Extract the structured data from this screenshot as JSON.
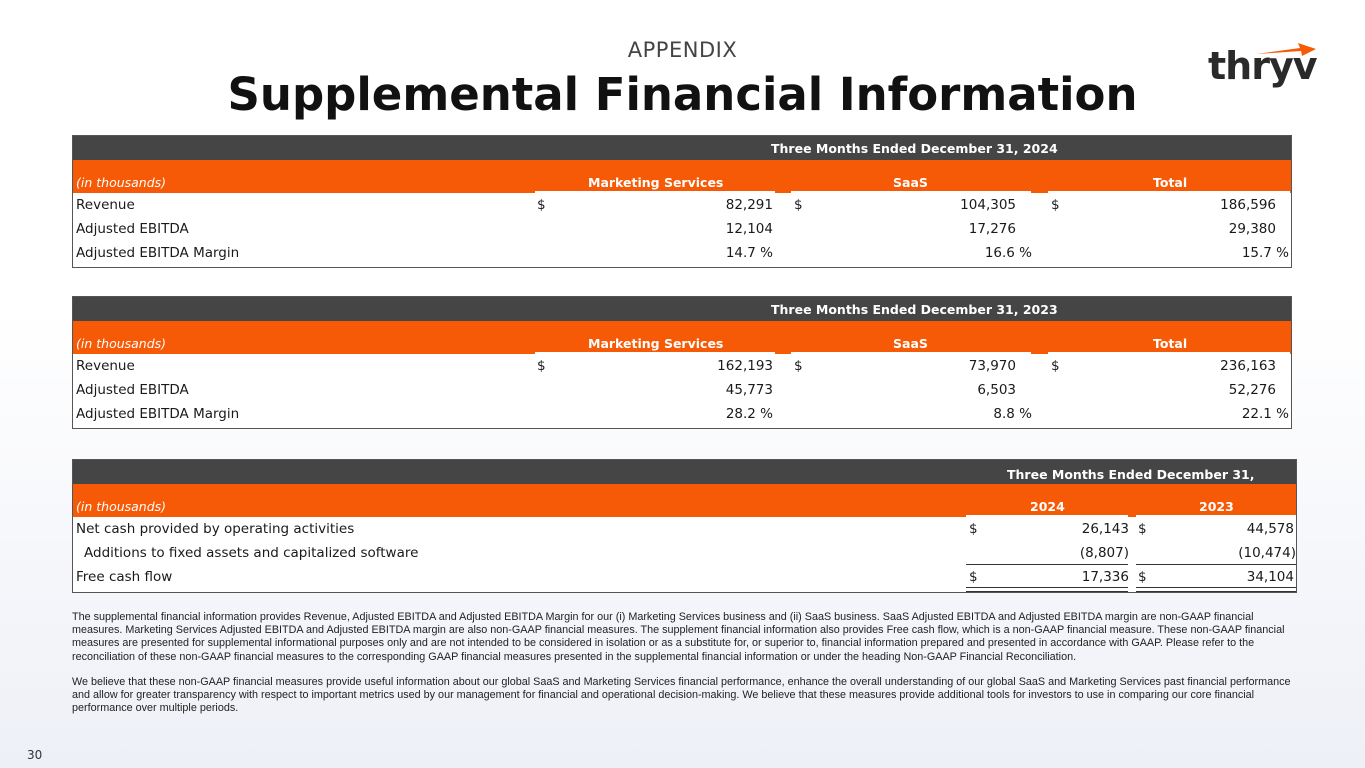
{
  "header": {
    "eyebrow": "APPENDIX",
    "title": "Supplemental Financial Information",
    "logo_text": "thryv"
  },
  "colors": {
    "accent": "#f75a06",
    "header_bar": "#454545"
  },
  "table_2024": {
    "period": "Three Months Ended December 31, 2024",
    "unit_label": "(in thousands)",
    "columns": [
      "Marketing Services",
      "SaaS",
      "Total"
    ],
    "rows": [
      {
        "label": "Revenue",
        "cur": "$",
        "values": [
          "82,291",
          "104,305",
          "186,596"
        ]
      },
      {
        "label": "Adjusted EBITDA",
        "values": [
          "12,104",
          "17,276",
          "29,380"
        ]
      },
      {
        "label": "Adjusted EBITDA Margin",
        "values": [
          "14.7 %",
          "16.6 %",
          "15.7 %"
        ]
      }
    ]
  },
  "table_2023": {
    "period": "Three Months Ended December 31, 2023",
    "unit_label": "(in thousands)",
    "columns": [
      "Marketing Services",
      "SaaS",
      "Total"
    ],
    "rows": [
      {
        "label": "Revenue",
        "cur": "$",
        "values": [
          "162,193",
          "73,970",
          "236,163"
        ]
      },
      {
        "label": "Adjusted EBITDA",
        "values": [
          "45,773",
          "6,503",
          "52,276"
        ]
      },
      {
        "label": "Adjusted EBITDA Margin",
        "values": [
          "28.2 %",
          "8.8 %",
          "22.1 %"
        ]
      }
    ]
  },
  "table_fcf": {
    "period": "Three Months Ended December 31,",
    "unit_label": "(in thousands)",
    "columns": [
      "2024",
      "2023"
    ],
    "rows": [
      {
        "label": "Net cash provided by operating activities",
        "cur": "$",
        "values": [
          "26,143",
          "44,578"
        ]
      },
      {
        "label": "Additions to fixed assets and capitalized software",
        "values": [
          "(8,807)",
          "(10,474)"
        ]
      },
      {
        "label": "Free cash flow",
        "cur": "$",
        "values": [
          "17,336",
          "34,104"
        ]
      }
    ]
  },
  "footnotes": [
    "The supplemental financial information provides Revenue, Adjusted EBITDA and Adjusted EBITDA Margin for our (i) Marketing Services business and (ii) SaaS business. SaaS Adjusted EBITDA and Adjusted EBITDA margin are non-GAAP financial measures. Marketing Services Adjusted EBITDA and Adjusted EBITDA margin are also non-GAAP financial measures. The supplement financial information also provides Free cash flow, which is a non-GAAP financial measure.  These non-GAAP financial measures are presented for supplemental informational purposes only and are not intended to be considered in isolation or as a substitute for, or superior to, financial information prepared and presented in accordance with GAAP. Please refer to the reconciliation of these non-GAAP financial measures to the corresponding GAAP financial measures presented in the supplemental financial information or under the heading Non-GAAP Financial Reconciliation.",
    "We believe that these non-GAAP financial measures provide useful information about our global SaaS and Marketing Services financial performance, enhance the overall understanding of our global SaaS and Marketing Services past financial performance and allow for greater transparency with respect to important metrics used by our management for financial and operational decision-making. We believe that these measures provide additional tools for investors to use in comparing our core financial performance over multiple periods."
  ],
  "page_number": "30"
}
